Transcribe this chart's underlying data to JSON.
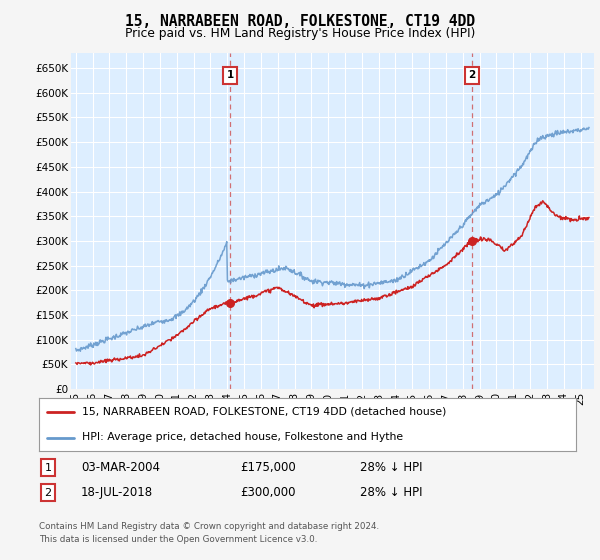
{
  "title": "15, NARRABEEN ROAD, FOLKESTONE, CT19 4DD",
  "subtitle": "Price paid vs. HM Land Registry's House Price Index (HPI)",
  "ylim": [
    0,
    680000
  ],
  "yticks": [
    0,
    50000,
    100000,
    150000,
    200000,
    250000,
    300000,
    350000,
    400000,
    450000,
    500000,
    550000,
    600000,
    650000
  ],
  "ytick_labels": [
    "£0",
    "£50K",
    "£100K",
    "£150K",
    "£200K",
    "£250K",
    "£300K",
    "£350K",
    "£400K",
    "£450K",
    "£500K",
    "£550K",
    "£600K",
    "£650K"
  ],
  "xlim_start": 1994.7,
  "xlim_end": 2025.8,
  "xticks": [
    1995,
    1996,
    1997,
    1998,
    1999,
    2000,
    2001,
    2002,
    2003,
    2004,
    2005,
    2006,
    2007,
    2008,
    2009,
    2010,
    2011,
    2012,
    2013,
    2014,
    2015,
    2016,
    2017,
    2018,
    2019,
    2020,
    2021,
    2022,
    2023,
    2024,
    2025
  ],
  "plot_bg_color": "#ddeeff",
  "grid_color": "#ffffff",
  "hpi_color": "#6699cc",
  "price_color": "#cc2222",
  "sale1_x": 2004.17,
  "sale1_y": 175000,
  "sale2_x": 2018.54,
  "sale2_y": 300000,
  "legend_label1": "15, NARRABEEN ROAD, FOLKESTONE, CT19 4DD (detached house)",
  "legend_label2": "HPI: Average price, detached house, Folkestone and Hythe",
  "table_row1_num": "1",
  "table_row1_date": "03-MAR-2004",
  "table_row1_price": "£175,000",
  "table_row1_hpi": "28% ↓ HPI",
  "table_row2_num": "2",
  "table_row2_date": "18-JUL-2018",
  "table_row2_price": "£300,000",
  "table_row2_hpi": "28% ↓ HPI",
  "footer_line1": "Contains HM Land Registry data © Crown copyright and database right 2024.",
  "footer_line2": "This data is licensed under the Open Government Licence v3.0.",
  "fig_bg_color": "#f5f5f5"
}
